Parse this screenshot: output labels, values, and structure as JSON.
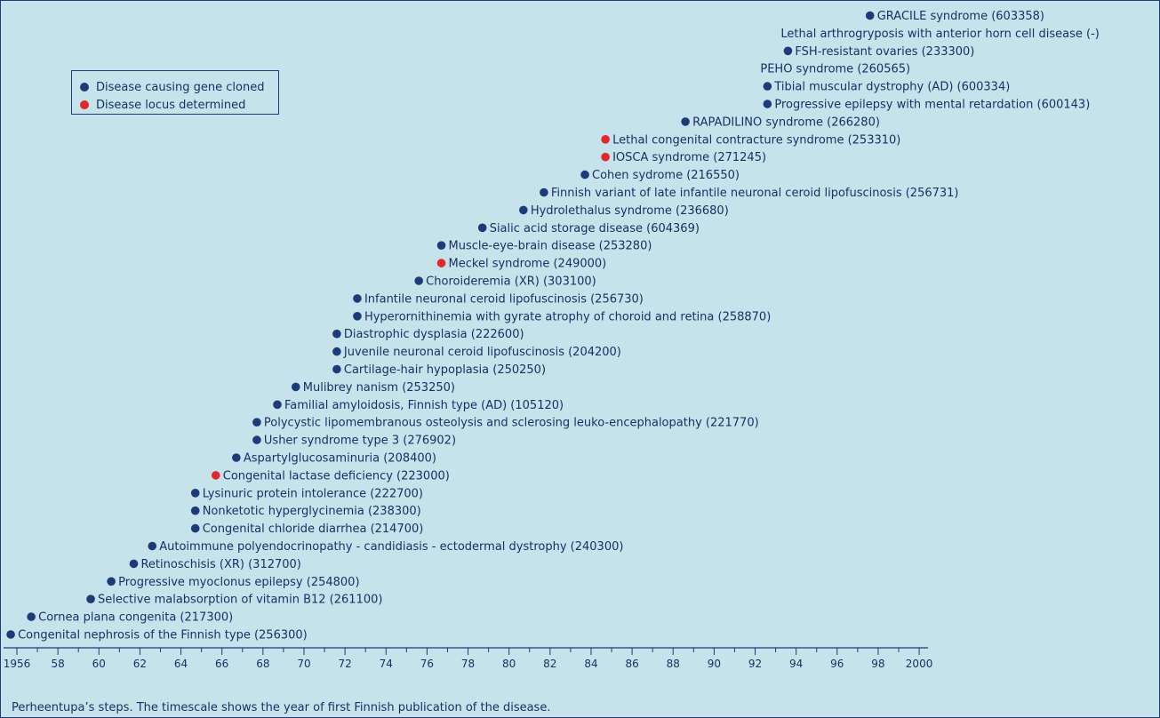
{
  "chart_data": {
    "type": "scatter",
    "caption": "Perheentupa’s steps. The timescale shows the year of first Finnish publication of the disease.",
    "legend": {
      "placement": "top-left",
      "entries": [
        {
          "label": "Disease causing gene cloned",
          "color": "#1d3b78"
        },
        {
          "label": "Disease locus determined",
          "color": "#e0282a"
        }
      ]
    },
    "x_axis": {
      "xlim": [
        1955.6,
        2000
      ],
      "tick_values": [
        1956,
        1958,
        1960,
        1962,
        1964,
        1966,
        1968,
        1970,
        1972,
        1974,
        1976,
        1978,
        1980,
        1982,
        1984,
        1986,
        1988,
        1990,
        1992,
        1994,
        1996,
        1998,
        2000
      ],
      "tick_labels": [
        "1956",
        "58",
        "60",
        "62",
        "64",
        "66",
        "68",
        "70",
        "72",
        "74",
        "76",
        "78",
        "80",
        "82",
        "84",
        "86",
        "88",
        "90",
        "92",
        "94",
        "96",
        "98",
        "2000"
      ]
    },
    "grid": false,
    "points": [
      {
        "year": 1955.7,
        "label": "Congenital nephrosis of the Finnish type (256300)",
        "status": "cloned"
      },
      {
        "year": 1956.7,
        "label": "Cornea plana congenita (217300)",
        "status": "cloned"
      },
      {
        "year": 1959.6,
        "label": "Selective malabsorption of vitamin B12 (261100)",
        "status": "cloned"
      },
      {
        "year": 1960.6,
        "label": "Progressive myoclonus epilepsy (254800)",
        "status": "cloned"
      },
      {
        "year": 1961.7,
        "label": "Retinoschisis (XR) (312700)",
        "status": "cloned"
      },
      {
        "year": 1962.6,
        "label": "Autoimmune polyendocrinopathy - candidiasis - ectodermal dystrophy (240300)",
        "status": "cloned"
      },
      {
        "year": 1964.7,
        "label": "Congenital chloride diarrhea (214700)",
        "status": "cloned"
      },
      {
        "year": 1964.7,
        "label": "Nonketotic hyperglycinemia (238300)",
        "status": "cloned"
      },
      {
        "year": 1964.7,
        "label": "Lysinuric protein intolerance (222700)",
        "status": "cloned"
      },
      {
        "year": 1965.7,
        "label": "Congenital lactase deficiency (223000)",
        "status": "locus"
      },
      {
        "year": 1966.7,
        "label": "Aspartylglucosaminuria (208400)",
        "status": "cloned"
      },
      {
        "year": 1967.7,
        "label": "Usher syndrome type 3 (276902)",
        "status": "cloned"
      },
      {
        "year": 1967.7,
        "label": "Polycystic lipomembranous osteolysis and sclerosing leuko-encephalopathy (221770)",
        "status": "cloned"
      },
      {
        "year": 1968.7,
        "label": "Familial amyloidosis, Finnish type (AD) (105120)",
        "status": "cloned"
      },
      {
        "year": 1969.6,
        "label": "Mulibrey nanism (253250)",
        "status": "cloned"
      },
      {
        "year": 1971.6,
        "label": "Cartilage-hair hypoplasia (250250)",
        "status": "cloned"
      },
      {
        "year": 1971.6,
        "label": "Juvenile neuronal ceroid lipofuscinosis (204200)",
        "status": "cloned"
      },
      {
        "year": 1971.6,
        "label": "Diastrophic dysplasia (222600)",
        "status": "cloned"
      },
      {
        "year": 1972.6,
        "label": "Hyperornithinemia with gyrate atrophy of choroid and retina (258870)",
        "status": "cloned"
      },
      {
        "year": 1972.6,
        "label": "Infantile neuronal ceroid lipofuscinosis (256730)",
        "status": "cloned"
      },
      {
        "year": 1975.6,
        "label": "Choroideremia (XR) (303100)",
        "status": "cloned"
      },
      {
        "year": 1976.7,
        "label": "Meckel syndrome (249000)",
        "status": "locus"
      },
      {
        "year": 1976.7,
        "label": "Muscle-eye-brain disease (253280)",
        "status": "cloned"
      },
      {
        "year": 1978.7,
        "label": "Sialic acid storage disease (604369)",
        "status": "cloned"
      },
      {
        "year": 1980.7,
        "label": "Hydrolethalus syndrome (236680)",
        "status": "cloned"
      },
      {
        "year": 1981.7,
        "label": "Finnish variant of late infantile neuronal ceroid lipofuscinosis (256731)",
        "status": "cloned"
      },
      {
        "year": 1983.7,
        "label": "Cohen sydrome (216550)",
        "status": "cloned"
      },
      {
        "year": 1984.7,
        "label": "IOSCA syndrome (271245)",
        "status": "locus"
      },
      {
        "year": 1984.7,
        "label": "Lethal congenital contracture syndrome (253310)",
        "status": "locus"
      },
      {
        "year": 1988.6,
        "label": "RAPADILINO syndrome (266280)",
        "status": "cloned"
      },
      {
        "year": 1992.6,
        "label": "Progressive epilepsy with mental retardation (600143)",
        "status": "cloned"
      },
      {
        "year": 1992.6,
        "label": "Tibial muscular dystrophy (AD) (600334)",
        "status": "cloned"
      },
      {
        "year": null,
        "label": "PEHO syndrome (260565)",
        "status": "none"
      },
      {
        "year": 1993.6,
        "label": "FSH-resistant ovaries (233300)",
        "status": "cloned"
      },
      {
        "year": null,
        "label": "Lethal arthrogryposis with anterior horn cell disease (-)",
        "status": "none"
      },
      {
        "year": 1997.6,
        "label": "GRACILE syndrome (603358)",
        "status": "cloned"
      }
    ]
  }
}
